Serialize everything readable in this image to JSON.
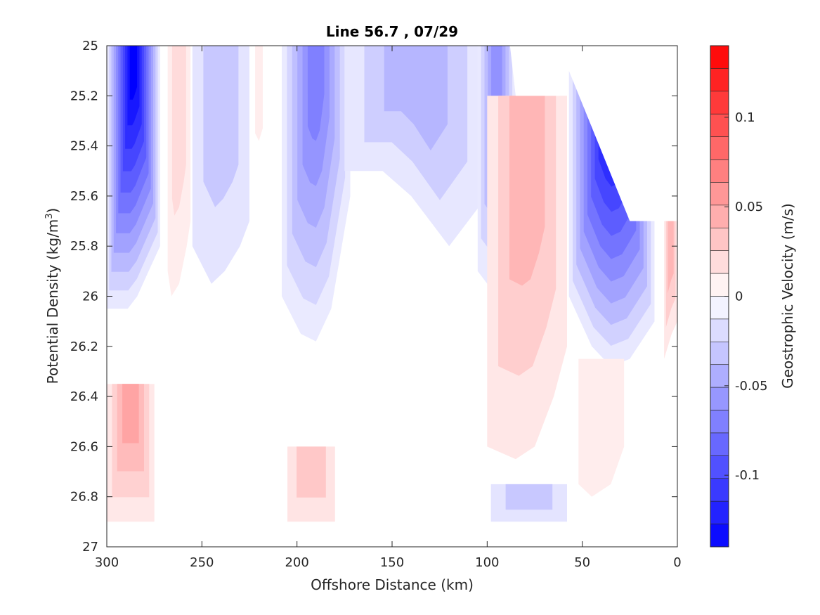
{
  "chart_data": {
    "type": "contour",
    "title": "Line 56.7 , 07/29",
    "xlabel": "Offshore Distance (km)",
    "ylabel_main": "Potential Density (kg/m",
    "ylabel_sup": "3",
    "ylabel_close": ")",
    "colorbar_label": "Geostrophic Velocity (m/s)",
    "xlim": [
      300,
      0
    ],
    "ylim": [
      25,
      27
    ],
    "x_reversed": true,
    "y_reversed": true,
    "x_ticks": [
      {
        "v": 300,
        "label": "300"
      },
      {
        "v": 250,
        "label": "250"
      },
      {
        "v": 200,
        "label": "200"
      },
      {
        "v": 150,
        "label": "150"
      },
      {
        "v": 100,
        "label": "100"
      },
      {
        "v": 50,
        "label": "50"
      },
      {
        "v": 0,
        "label": "0"
      }
    ],
    "y_ticks": [
      {
        "v": 25,
        "label": "25"
      },
      {
        "v": 25.2,
        "label": "25.2"
      },
      {
        "v": 25.4,
        "label": "25.4"
      },
      {
        "v": 25.6,
        "label": "25.6"
      },
      {
        "v": 25.8,
        "label": "25.8"
      },
      {
        "v": 26,
        "label": "26"
      },
      {
        "v": 26.2,
        "label": "26.2"
      },
      {
        "v": 26.4,
        "label": "26.4"
      },
      {
        "v": 26.6,
        "label": "26.6"
      },
      {
        "v": 26.8,
        "label": "26.8"
      },
      {
        "v": 27,
        "label": "27"
      }
    ],
    "colorbar": {
      "clim": [
        -0.14,
        0.14
      ],
      "levels": 22,
      "ticks": [
        {
          "v": 0.1,
          "label": "0.1"
        },
        {
          "v": 0.05,
          "label": "0.05"
        },
        {
          "v": 0,
          "label": "0"
        },
        {
          "v": -0.05,
          "label": "-0.05"
        },
        {
          "v": -0.1,
          "label": "-0.1"
        }
      ],
      "negative_color": "#0000ff",
      "positive_color": "#ff0000"
    },
    "features": [
      {
        "name": "blue-core-300km",
        "sign": "negative",
        "x": [
          300,
          289,
          284,
          278,
          272
        ],
        "y_top": 25.0,
        "y_bottom": [
          26.05,
          26.05,
          26.0,
          25.9,
          25.8
        ],
        "peak": -0.14
      },
      {
        "name": "red-band-265km",
        "sign": "positive",
        "x": [
          268,
          266,
          262,
          258,
          256
        ],
        "y_top": 25.0,
        "y_bottom": [
          25.9,
          26.0,
          25.95,
          25.8,
          25.7
        ],
        "peak": 0.02
      },
      {
        "name": "blue-band-240km",
        "sign": "negative",
        "x": [
          255,
          245,
          238,
          230,
          225
        ],
        "y_top": 25.0,
        "y_bottom": [
          25.8,
          25.95,
          25.9,
          25.8,
          25.7
        ],
        "peak": -0.03
      },
      {
        "name": "red-streak-220km",
        "sign": "positive",
        "x": [
          222,
          220,
          218
        ],
        "y_top": 25.0,
        "y_bottom": [
          25.35,
          25.38,
          25.33
        ],
        "peak": 0.01
      },
      {
        "name": "blue-core-195km",
        "sign": "negative",
        "x": [
          208,
          198,
          190,
          182,
          172
        ],
        "y_top": 25.0,
        "y_bottom": [
          26.0,
          26.15,
          26.18,
          26.05,
          25.6
        ],
        "peak": -0.07
      },
      {
        "name": "blue-spread-150km",
        "sign": "negative",
        "x": [
          175,
          155,
          140,
          120,
          100
        ],
        "y_top": 25.0,
        "y_bottom": [
          25.5,
          25.5,
          25.6,
          25.8,
          25.6
        ],
        "peak": -0.04
      },
      {
        "name": "blue-edge-100km",
        "sign": "negative",
        "x": [
          105,
          95,
          85
        ],
        "y_top": 25.0,
        "y_bottom": [
          25.9,
          26.0,
          25.7
        ],
        "peak": -0.06
      },
      {
        "name": "red-band-70km",
        "sign": "positive",
        "x": [
          100,
          85,
          75,
          65,
          58
        ],
        "y_top": 25.2,
        "y_bottom": [
          26.6,
          26.65,
          26.6,
          26.4,
          26.2
        ],
        "peak": 0.04
      },
      {
        "name": "blue-core-45km",
        "sign": "negative",
        "x": [
          57,
          45,
          35,
          25,
          12
        ],
        "y_top": 25.1,
        "y_bottom": [
          26.0,
          26.2,
          26.28,
          26.25,
          26.1
        ],
        "peak": -0.14
      },
      {
        "name": "red-strip-coast",
        "sign": "positive",
        "x": [
          7,
          3,
          0
        ],
        "y_top": 25.7,
        "y_bottom": [
          26.25,
          26.15,
          26.1
        ],
        "peak": 0.04
      },
      {
        "name": "red-patch-40km",
        "sign": "positive",
        "x": [
          52,
          45,
          35,
          28
        ],
        "y_top": 26.25,
        "y_bottom": [
          26.75,
          26.8,
          26.75,
          26.6
        ],
        "peak": 0.01
      },
      {
        "name": "red-deep-285km",
        "sign": "positive",
        "x": [
          300,
          290,
          282,
          275
        ],
        "y_top": 26.35,
        "y_bottom": [
          26.9,
          26.9,
          26.9,
          26.9
        ],
        "peak": 0.05
      },
      {
        "name": "red-deep-190km",
        "sign": "positive",
        "x": [
          205,
          195,
          190,
          180
        ],
        "y_top": 26.6,
        "y_bottom": [
          26.9,
          26.9,
          26.9,
          26.9
        ],
        "peak": 0.03
      },
      {
        "name": "blue-deep-70km",
        "sign": "negative",
        "x": [
          98,
          80,
          70,
          58
        ],
        "y_top": 26.75,
        "y_bottom": [
          26.9,
          26.9,
          26.9,
          26.9
        ],
        "peak": -0.03
      }
    ],
    "masked_regions": [
      {
        "name": "mask-top-right",
        "x_from": 88,
        "x_to": 0,
        "y_top": 25.0,
        "y_bottom": [
          25.2,
          25.2,
          25.1,
          25.7,
          25.7
        ]
      },
      {
        "name": "mask-bottom",
        "x_from": 300,
        "x_to": 0,
        "y_top": 26.9,
        "y_bottom": 27.0
      }
    ]
  }
}
